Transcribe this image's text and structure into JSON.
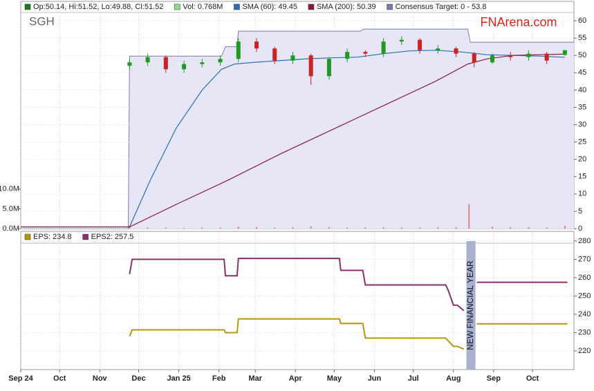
{
  "x_axis": {
    "xlim": [
      0,
      427
    ],
    "xticks": [
      {
        "value": 0,
        "label": "Sep 24"
      },
      {
        "value": 30,
        "label": "Oct"
      },
      {
        "value": 61,
        "label": "Nov"
      },
      {
        "value": 91,
        "label": "Dec"
      },
      {
        "value": 122,
        "label": "Jan 25"
      },
      {
        "value": 153,
        "label": "Feb"
      },
      {
        "value": 181,
        "label": "Mar"
      },
      {
        "value": 212,
        "label": "Apr"
      },
      {
        "value": 242,
        "label": "May"
      },
      {
        "value": 273,
        "label": "Jun"
      },
      {
        "value": 303,
        "label": "Jul"
      },
      {
        "value": 334,
        "label": "Aug"
      },
      {
        "value": 365,
        "label": "Sep"
      },
      {
        "value": 395,
        "label": "Oct"
      }
    ]
  },
  "chart_data": [
    {
      "type": "candlestick",
      "title": "SGH",
      "watermark": "FNArena.com",
      "ylim": [
        0,
        62.4
      ],
      "yticks": [
        0,
        5,
        10,
        15,
        20,
        25,
        30,
        35,
        40,
        45,
        50,
        55,
        60
      ],
      "grid": true,
      "candles": {
        "name": "Op:50.14, Hi:51.52, Lo:49.88, Cl:51.52",
        "color": "#1e7a1e",
        "up_color": "#1e9a1e",
        "down_color": "#cc2222",
        "x": [
          84,
          98,
          112,
          126,
          140,
          154,
          168,
          182,
          196,
          210,
          224,
          238,
          252,
          266,
          280,
          294,
          308,
          322,
          336,
          350,
          364,
          378,
          392,
          406,
          420
        ],
        "open": [
          47,
          48,
          49.5,
          46,
          47.5,
          48,
          49,
          54,
          52,
          48.5,
          50,
          44,
          49,
          51,
          50.5,
          54,
          54.5,
          51.5,
          52,
          50.5,
          48,
          50,
          49.5,
          50.5,
          50.14
        ],
        "high": [
          49,
          50.5,
          50,
          48.5,
          49,
          50,
          55,
          55,
          52.5,
          51,
          50.5,
          49.5,
          52,
          51.5,
          55,
          55.5,
          55,
          53,
          52.5,
          51,
          50.5,
          51,
          51.5,
          51,
          51.52
        ],
        "low": [
          46,
          47,
          45,
          45,
          46.5,
          47,
          48,
          51,
          47.5,
          47.5,
          41.5,
          43,
          48,
          49.5,
          49.5,
          53,
          50.5,
          50.5,
          49.5,
          46.5,
          47.5,
          48.5,
          48.5,
          47.5,
          49.88
        ],
        "close": [
          48,
          49.5,
          46,
          47.5,
          48,
          49,
          54,
          52,
          48.5,
          50,
          44,
          49,
          51,
          50.5,
          54,
          54.5,
          51.5,
          52,
          50.5,
          48,
          50,
          49.5,
          50.5,
          48.5,
          51.52
        ]
      },
      "volume": {
        "name": "Vol: 0.768M",
        "color": "#e88080",
        "legend_color": "#8fdc8f",
        "ylim": [
          0,
          54.7
        ],
        "yticks": [
          {
            "value": 0,
            "label": "0.0M"
          },
          {
            "value": 5,
            "label": "5.0M"
          },
          {
            "value": 10,
            "label": "10.0M"
          }
        ],
        "x": [
          84,
          98,
          112,
          126,
          140,
          154,
          168,
          182,
          196,
          210,
          224,
          238,
          252,
          266,
          280,
          294,
          308,
          322,
          336,
          346,
          364,
          378,
          392,
          406,
          420
        ],
        "values": [
          0.8,
          0.3,
          0.3,
          0.2,
          0.3,
          0.3,
          0.5,
          0.4,
          0.3,
          0.4,
          0.6,
          0.4,
          0.3,
          0.3,
          0.4,
          0.3,
          0.3,
          0.4,
          0.4,
          6.2,
          0.5,
          0.4,
          0.4,
          0.3,
          0.768
        ]
      },
      "target": {
        "name": "Consensus Target: 0 - 53.8",
        "color": "#7a7ab0",
        "fill": "#e6e6f6",
        "x": [
          0,
          83,
          84,
          155,
          158,
          167,
          168,
          262,
          265,
          345,
          347,
          427
        ],
        "values": [
          0,
          0,
          49.8,
          49.8,
          52.5,
          52.5,
          57,
          57,
          57.6,
          57.6,
          53.8,
          53.8
        ]
      },
      "series": [
        {
          "name": "SMA (60): 49.45",
          "color": "#2a6db5",
          "x": [
            0,
            84,
            100,
            120,
            140,
            155,
            165,
            180,
            200,
            220,
            240,
            260,
            280,
            300,
            320,
            340,
            360,
            380,
            400,
            420
          ],
          "values": [
            0.5,
            0.5,
            14,
            29,
            40,
            46,
            47.5,
            48,
            48.5,
            49,
            49.3,
            49.5,
            50.5,
            51.3,
            51.5,
            51,
            50.2,
            50,
            49.8,
            49.45
          ]
        },
        {
          "name": "SMA (200): 50.39",
          "color": "#8b1a3a",
          "x": [
            0,
            84,
            120,
            160,
            200,
            240,
            280,
            320,
            345,
            360,
            380,
            400,
            420
          ],
          "values": [
            0.5,
            0.5,
            7,
            14,
            21.5,
            28.5,
            35.5,
            42.5,
            47.5,
            49,
            50,
            50.2,
            50.39
          ]
        }
      ]
    },
    {
      "type": "line",
      "ylim": [
        209.8,
        284.5
      ],
      "yticks": [
        220,
        230,
        240,
        250,
        260,
        270,
        280
      ],
      "grid": true,
      "annotation": {
        "text": "NEW FINANCIAL YEAR",
        "x": [
          344,
          351
        ],
        "color": "#a9b0d0"
      },
      "x": [
        84,
        86,
        157,
        158,
        167,
        168,
        246,
        247,
        264,
        266,
        328,
        330,
        334,
        337,
        342,
        347,
        352,
        422
      ],
      "series": [
        {
          "name": "EPS: 234.8",
          "color": "#b8960c",
          "values": [
            228,
            231.5,
            231.5,
            230,
            230,
            237.5,
            237.5,
            235,
            235,
            227,
            227,
            225.5,
            222.5,
            222.5,
            221,
            null,
            234.8,
            234.8
          ]
        },
        {
          "name": "EPS2: 257.5",
          "color": "#8b2e6e",
          "values": [
            262,
            270,
            270,
            261,
            261,
            270.5,
            270.5,
            264,
            264,
            256,
            256,
            253,
            245,
            245,
            242,
            null,
            257.5,
            257.5
          ]
        }
      ]
    }
  ]
}
